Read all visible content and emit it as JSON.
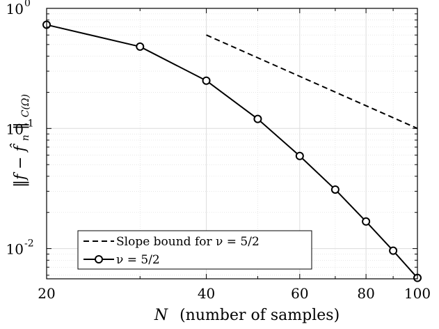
{
  "chart_data": {
    "type": "line",
    "xscale": "log",
    "yscale": "log",
    "xlim": [
      20,
      100
    ],
    "ylim": [
      0.0056,
      1
    ],
    "xlabel": {
      "main": "N",
      "rest": "(number of samples)"
    },
    "ylabel": {
      "main": "‖f − f̂",
      "sub_n": "n",
      "close": "‖",
      "sub_norm": "C(Ω)"
    },
    "x_ticks": [
      {
        "value": 20,
        "label": "20"
      },
      {
        "value": 40,
        "label": "40"
      },
      {
        "value": 60,
        "label": "60"
      },
      {
        "value": 80,
        "label": "80"
      },
      {
        "value": 100,
        "label": "100"
      }
    ],
    "y_ticks": [
      {
        "value": 0.01,
        "base": "10",
        "exp": "-2"
      },
      {
        "value": 0.1,
        "base": "10",
        "exp": "-1"
      },
      {
        "value": 1,
        "base": "10",
        "exp": "0"
      }
    ],
    "grid": true,
    "legend_position": "bottom-left",
    "series": [
      {
        "name": "Slope bound for ν = 5/2",
        "style": "dashed",
        "color": "#000000",
        "marker": "none",
        "x": [
          40,
          100
        ],
        "y": [
          0.6,
          0.1
        ]
      },
      {
        "name": "ν = 5/2",
        "style": "solid",
        "color": "#000000",
        "marker": "circle",
        "x": [
          20,
          30,
          40,
          50,
          60,
          70,
          80,
          90,
          100
        ],
        "y": [
          0.73,
          0.48,
          0.25,
          0.12,
          0.059,
          0.031,
          0.0168,
          0.0096,
          0.0057
        ]
      }
    ]
  }
}
